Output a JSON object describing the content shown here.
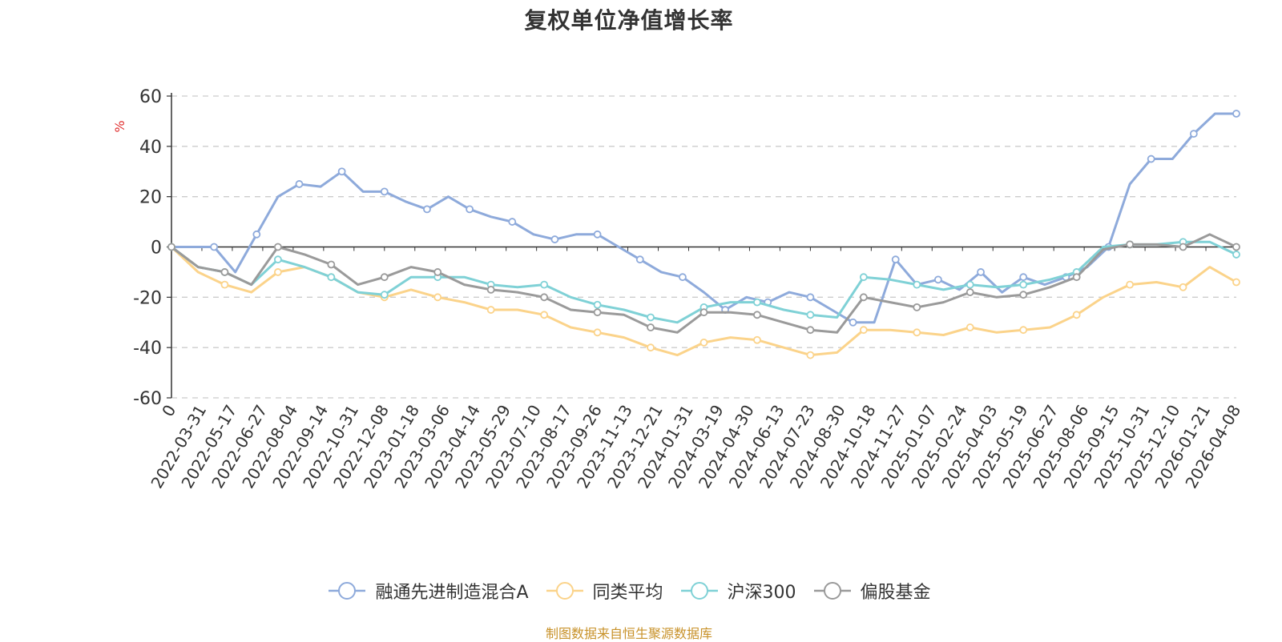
{
  "chart_data": {
    "type": "line",
    "title": "复权单位净值增长率",
    "ylabel": "%",
    "xlabel": "",
    "ylim": [
      -60,
      60
    ],
    "yticks": [
      -60,
      -40,
      -20,
      0,
      20,
      40,
      60
    ],
    "x_tick_labels": [
      "0",
      "2022-03-31",
      "2022-05-17",
      "2022-06-27",
      "2022-08-04",
      "2022-09-14",
      "2022-10-31",
      "2022-12-08",
      "2023-01-18",
      "2023-03-06",
      "2023-04-14",
      "2023-05-29",
      "2023-07-10",
      "2023-08-17",
      "2023-09-26",
      "2023-11-13",
      "2023-12-21",
      "2024-01-31",
      "2024-03-19",
      "2024-04-30",
      "2024-06-13",
      "2024-07-23",
      "2024-08-30",
      "2024-10-18",
      "2024-11-27",
      "2025-01-07",
      "2025-02-24",
      "2025-04-03",
      "2025-05-19",
      "2025-06-27",
      "2025-08-06",
      "2025-09-15",
      "2025-10-31",
      "2025-12-10",
      "2026-01-21",
      "2026-04-08"
    ],
    "grid": true,
    "legend_position": "bottom",
    "series": [
      {
        "name": "融通先进制造混合A",
        "color": "#8eaadb",
        "values": [
          0,
          0,
          0,
          -10,
          5,
          20,
          25,
          24,
          30,
          22,
          22,
          18,
          15,
          20,
          15,
          12,
          10,
          5,
          3,
          5,
          5,
          0,
          -5,
          -10,
          -12,
          -18,
          -25,
          -20,
          -22,
          -18,
          -20,
          -25,
          -30,
          -30,
          -5,
          -15,
          -13,
          -17,
          -10,
          -18,
          -12,
          -15,
          -12,
          -8,
          0,
          25,
          35,
          35,
          45,
          53,
          53
        ]
      },
      {
        "name": "同类平均",
        "color": "#fbd38a",
        "values": [
          0,
          -10,
          -15,
          -18,
          -10,
          -8,
          -12,
          -18,
          -20,
          -17,
          -20,
          -22,
          -25,
          -25,
          -27,
          -32,
          -34,
          -36,
          -40,
          -43,
          -38,
          -36,
          -37,
          -40,
          -43,
          -42,
          -33,
          -33,
          -34,
          -35,
          -32,
          -34,
          -33,
          -32,
          -27,
          -20,
          -15,
          -14,
          -16,
          -8,
          -14
        ]
      },
      {
        "name": "沪深300",
        "color": "#7fd1d6",
        "values": [
          0,
          -8,
          -10,
          -15,
          -5,
          -8,
          -12,
          -18,
          -19,
          -12,
          -12,
          -12,
          -15,
          -16,
          -15,
          -20,
          -23,
          -25,
          -28,
          -30,
          -24,
          -22,
          -22,
          -25,
          -27,
          -28,
          -12,
          -13,
          -15,
          -17,
          -15,
          -16,
          -15,
          -13,
          -10,
          0,
          1,
          1,
          2,
          2,
          -3
        ]
      },
      {
        "name": "偏股基金",
        "color": "#9a9a9a",
        "values": [
          0,
          -8,
          -10,
          -15,
          0,
          -3,
          -7,
          -15,
          -12,
          -8,
          -10,
          -15,
          -17,
          -18,
          -20,
          -25,
          -26,
          -27,
          -32,
          -34,
          -26,
          -26,
          -27,
          -30,
          -33,
          -34,
          -20,
          -22,
          -24,
          -22,
          -18,
          -20,
          -19,
          -16,
          -12,
          -1,
          1,
          1,
          0,
          5,
          0
        ]
      }
    ]
  },
  "source_note": "制图数据来自恒生聚源数据库"
}
